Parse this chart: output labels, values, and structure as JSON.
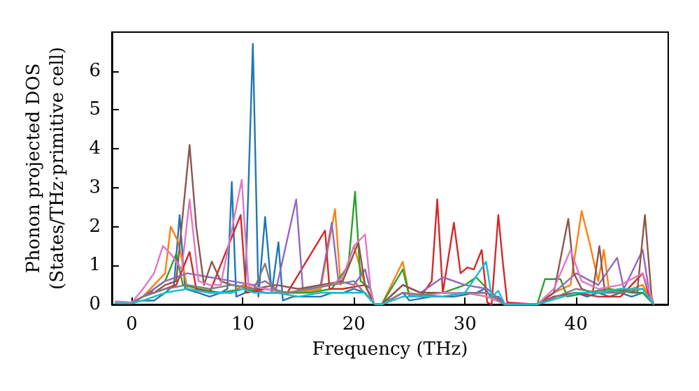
{
  "chart_data": {
    "type": "line",
    "xlabel": "Frequency (THz)",
    "ylabel": "Phonon projected DOS\n(States/THz·primitive cell)",
    "xlim": [
      -1.8,
      48.3
    ],
    "ylim": [
      0,
      7.0
    ],
    "xticks": [
      0,
      10,
      20,
      30,
      40
    ],
    "yticks": [
      0,
      1,
      2,
      3,
      4,
      5,
      6
    ],
    "grid": false,
    "marker": "none",
    "line_style": "solid",
    "series": [
      {
        "color": "#1f77b4",
        "x": [
          -1.5,
          0,
          1,
          2,
          3,
          3.8,
          4.3,
          4.8,
          6,
          7,
          8,
          8.6,
          9.0,
          9.4,
          10.2,
          10.9,
          11.4,
          12.0,
          12.6,
          13.2,
          13.6,
          14.5,
          15.5,
          17,
          18,
          19,
          20,
          21,
          21.8,
          22.5,
          24.4,
          25,
          27,
          29,
          31,
          31.8,
          32.3,
          33,
          33.6,
          36.5,
          38,
          40,
          41,
          42,
          43,
          44,
          45,
          46,
          47
        ],
        "values": [
          0.05,
          0.05,
          0.1,
          0.1,
          0.3,
          0.5,
          2.3,
          0.4,
          0.3,
          0.2,
          0.3,
          0.4,
          3.15,
          0.2,
          0.3,
          6.7,
          0.2,
          2.25,
          0.3,
          1.6,
          0.1,
          0.2,
          0.2,
          0.2,
          0.3,
          0.3,
          0.4,
          0.3,
          0.02,
          0,
          0.3,
          0.1,
          0.2,
          0.2,
          0.3,
          0.4,
          0.2,
          0.2,
          0,
          0,
          0.2,
          0.3,
          0.2,
          0.3,
          0.2,
          0.3,
          0.2,
          0.3,
          0
        ]
      },
      {
        "color": "#ff7f0e",
        "x": [
          -1.5,
          0,
          1,
          2,
          3,
          3.5,
          4.2,
          5,
          7,
          9,
          10,
          12,
          15,
          17,
          18.3,
          18.8,
          20,
          21,
          21.8,
          22.5,
          24.4,
          25,
          28,
          30,
          32,
          33.6,
          36.5,
          38,
          39.5,
          40.5,
          41.2,
          42,
          42.5,
          43,
          45,
          46,
          47
        ],
        "values": [
          0.05,
          0.05,
          0.2,
          0.5,
          0.8,
          2.0,
          1.6,
          0.4,
          0.3,
          0.3,
          0.5,
          0.3,
          0.3,
          0.4,
          2.45,
          0.5,
          1.5,
          0.5,
          0.02,
          0,
          1.1,
          0.2,
          0.3,
          0.3,
          0.2,
          0,
          0,
          0.3,
          0.5,
          2.4,
          1.6,
          0.6,
          1.4,
          0.3,
          0.4,
          0.5,
          0
        ]
      },
      {
        "color": "#2ca02c",
        "x": [
          1.5,
          2,
          3,
          4.0,
          4.6,
          6,
          8,
          10,
          12,
          14,
          16,
          18,
          19.5,
          20.1,
          20.6,
          21.5,
          21.8,
          22.5,
          24.4,
          25,
          28,
          30,
          31,
          32,
          33.6,
          36.5,
          37.2,
          38.6,
          39.2,
          41,
          43,
          45,
          46,
          47
        ],
        "values": [
          0.25,
          0.4,
          0.6,
          1.3,
          0.5,
          0.4,
          0.3,
          0.4,
          0.3,
          0.3,
          0.3,
          0.4,
          1.0,
          2.9,
          0.6,
          0.4,
          0.02,
          0,
          0.9,
          0.2,
          0.3,
          0.5,
          0.7,
          0.4,
          0,
          0,
          0.65,
          0.65,
          0.2,
          0.3,
          0.4,
          0.3,
          0.3,
          0
        ]
      },
      {
        "color": "#d62728",
        "x": [
          1.5,
          2,
          3,
          4,
          5.2,
          5.8,
          7,
          9.8,
          10.3,
          12,
          14,
          17.4,
          17.8,
          19,
          21,
          21.8,
          22.5,
          24.4,
          26,
          27,
          27.5,
          28,
          29,
          29.6,
          30.2,
          30.8,
          31.5,
          32,
          32.4,
          33.0,
          33.4,
          33.8,
          36.5,
          38,
          40,
          42,
          44,
          46,
          46.5,
          47
        ],
        "values": [
          0.3,
          0.3,
          0.4,
          0.5,
          1.35,
          0.4,
          0.3,
          2.3,
          0.3,
          0.4,
          0.3,
          1.9,
          0.4,
          0.4,
          0.5,
          0.02,
          0,
          0.3,
          0.2,
          0.6,
          2.7,
          0.3,
          2.1,
          0.8,
          0.95,
          0.9,
          1.4,
          0.05,
          0,
          2.3,
          1.1,
          0.05,
          0,
          0.2,
          0.3,
          0.2,
          0.2,
          0.8,
          0.3,
          0
        ]
      },
      {
        "color": "#9467bd",
        "x": [
          -1.5,
          0,
          1,
          2,
          3,
          5,
          7,
          9,
          11,
          12,
          13,
          14.8,
          15.4,
          17,
          18.0,
          18.6,
          20,
          21,
          21.8,
          22.5,
          24.4,
          26,
          28,
          30,
          32,
          33.6,
          36.5,
          38,
          40,
          42,
          43.7,
          44.3,
          46,
          46.6,
          47
        ],
        "values": [
          0.05,
          0.05,
          0.2,
          0.4,
          0.6,
          0.8,
          0.7,
          0.6,
          0.5,
          0.6,
          0.4,
          2.7,
          0.4,
          0.5,
          2.1,
          0.6,
          0.5,
          0.9,
          0.02,
          0,
          0.5,
          0.3,
          0.7,
          0.5,
          0.4,
          0,
          0,
          0.3,
          0.8,
          0.5,
          1.2,
          0.4,
          1.4,
          0.3,
          0
        ]
      },
      {
        "color": "#8c564b",
        "x": [
          -1.5,
          0,
          1,
          2,
          3,
          4,
          5.2,
          5.8,
          6.5,
          7.2,
          8,
          9,
          11,
          13,
          15,
          17,
          19,
          20.4,
          21,
          21.8,
          22.5,
          24.4,
          26,
          28,
          30,
          32,
          33.6,
          36.5,
          38,
          39.3,
          39.8,
          40.5,
          41.5,
          42.1,
          42.6,
          44,
          45.5,
          46.2,
          46.8,
          47
        ],
        "values": [
          0.05,
          0.05,
          0.2,
          0.3,
          0.5,
          0.6,
          4.1,
          2.0,
          0.5,
          1.1,
          0.6,
          0.5,
          0.4,
          0.5,
          0.4,
          0.5,
          0.6,
          1.6,
          0.5,
          0.02,
          0,
          0.5,
          0.3,
          0.3,
          0.3,
          0.3,
          0,
          0,
          0.3,
          2.2,
          0.8,
          0.4,
          0.3,
          1.5,
          0.3,
          0.4,
          0.3,
          2.3,
          0.2,
          0
        ]
      },
      {
        "color": "#e377c2",
        "x": [
          -1.5,
          0,
          1,
          2,
          2.8,
          3.5,
          4.5,
          5.2,
          6,
          7,
          8,
          9.9,
          10.5,
          12,
          14,
          16,
          18,
          19,
          20,
          21,
          21.5,
          21.8,
          22.5,
          24.4,
          26,
          28,
          30,
          32,
          33.6,
          36.5,
          38,
          39.5,
          40.5,
          42,
          44,
          46,
          47
        ],
        "values": [
          0.08,
          0.05,
          0.4,
          0.8,
          1.5,
          1.3,
          0.9,
          2.7,
          0.6,
          0.5,
          0.5,
          3.2,
          0.5,
          0.4,
          0.3,
          0.4,
          0.5,
          0.7,
          1.5,
          1.8,
          0.4,
          0.02,
          0,
          0.3,
          0.2,
          0.3,
          0.3,
          0.2,
          0,
          0,
          0.4,
          1.4,
          0.6,
          0.4,
          0.5,
          0.8,
          0
        ]
      },
      {
        "color": "#7f7f7f",
        "x": [
          -1.5,
          0,
          1,
          2,
          3,
          5,
          7,
          9,
          11,
          12,
          12.6,
          14,
          16,
          18,
          20,
          21.8,
          22.5,
          24.4,
          28,
          30,
          32,
          33.6,
          36.5,
          40,
          42,
          44,
          46,
          47
        ],
        "values": [
          0.03,
          0.03,
          0.2,
          0.3,
          0.4,
          0.5,
          0.4,
          0.5,
          0.4,
          1.05,
          0.4,
          0.3,
          0.4,
          0.5,
          0.6,
          0.02,
          0,
          0.3,
          0.2,
          0.3,
          0.3,
          0,
          0,
          0.4,
          0.3,
          0.3,
          0.4,
          0
        ]
      },
      {
        "color": "#17becf",
        "x": [
          -1.5,
          0,
          1,
          2,
          3,
          5,
          7,
          9,
          10,
          11,
          13,
          15,
          17,
          19,
          21,
          21.8,
          22.5,
          24.4,
          28,
          30,
          31.9,
          32.4,
          33,
          33.6,
          36.5,
          40,
          42,
          44,
          46,
          47
        ],
        "values": [
          0.03,
          0.03,
          0.1,
          0.2,
          0.3,
          0.4,
          0.3,
          0.3,
          0.4,
          0.3,
          0.3,
          0.2,
          0.3,
          0.3,
          0.3,
          0.02,
          0,
          0.2,
          0.2,
          0.3,
          1.1,
          0.2,
          0.35,
          0,
          0,
          0.3,
          0.3,
          0.4,
          0.4,
          0
        ]
      }
    ]
  }
}
